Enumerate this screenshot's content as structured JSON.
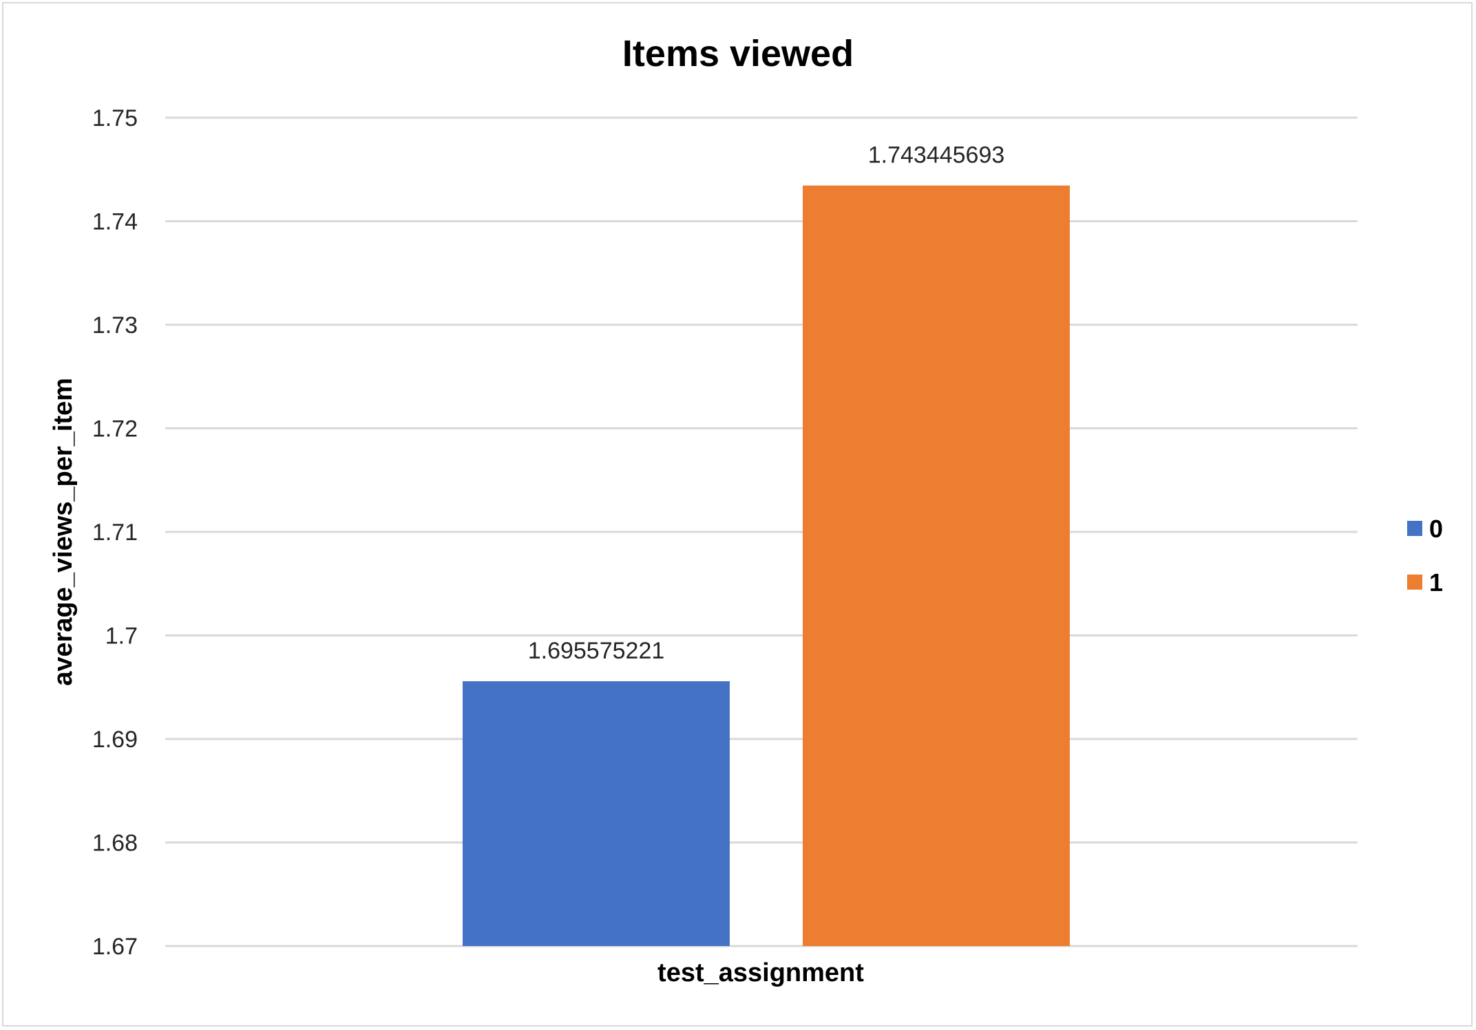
{
  "chart_data": {
    "type": "bar",
    "title": "Items viewed",
    "xlabel": "test_assignment",
    "ylabel": "average_views_per_item",
    "categories": [
      "test_assignment"
    ],
    "series": [
      {
        "name": "0",
        "values": [
          1.695575221
        ],
        "color": "#4472c4",
        "label": "1.695575221"
      },
      {
        "name": "1",
        "values": [
          1.743445693
        ],
        "color": "#ed7d31",
        "label": "1.743445693"
      }
    ],
    "ylim": [
      1.67,
      1.75
    ],
    "yticks": [
      "1.67",
      "1.68",
      "1.69",
      "1.7",
      "1.71",
      "1.72",
      "1.73",
      "1.74",
      "1.75"
    ],
    "grid": true,
    "gridColor": "#d9d9d9",
    "legend": "right"
  }
}
